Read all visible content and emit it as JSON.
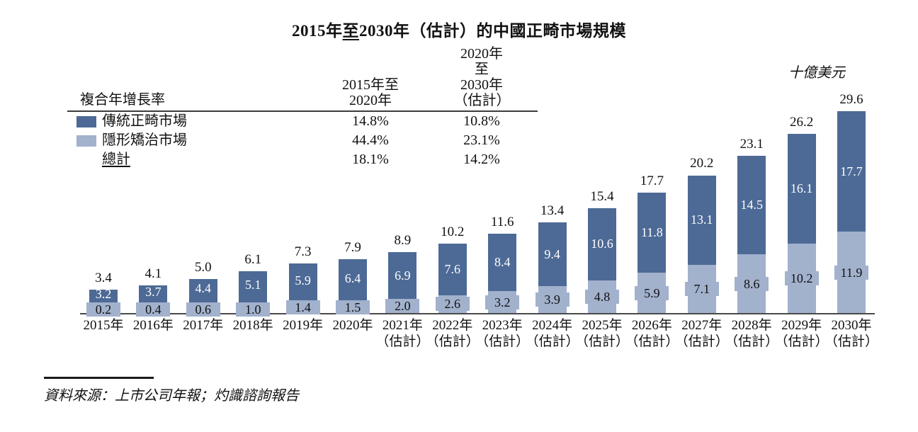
{
  "title": {
    "part1": "2015年",
    "part2": "至",
    "part3": "2030年（估計）的中國正畸市場規模"
  },
  "unit_label": "十億美元",
  "cagr_table": {
    "row_header": "複合年增長率",
    "col1_header": [
      "2015年至",
      "2020年"
    ],
    "col2_header": [
      "2020年至",
      "2030年",
      "（估計）"
    ],
    "rows": [
      {
        "label": "傳統正畸市場",
        "col1": "14.8%",
        "col2": "10.8%"
      },
      {
        "label": "隱形矯治市場",
        "col1": "44.4%",
        "col2": "23.1%"
      },
      {
        "label": "總計",
        "col1": "18.1%",
        "col2": "14.2%"
      }
    ]
  },
  "source": "資料來源：上市公司年報；灼識諮詢報告",
  "colors": {
    "traditional": "#4d6a96",
    "invisible": "#a2b1cc",
    "axis_line": "#4a4a4a"
  },
  "chart_data": {
    "type": "bar",
    "stacked": true,
    "title": "2015年至2030年（估計）的中國正畸市場規模",
    "unit": "十億美元",
    "grid": false,
    "legend_position": "top-left",
    "categories": [
      "2015年",
      "2016年",
      "2017年",
      "2018年",
      "2019年",
      "2020年",
      "2021年",
      "2022年",
      "2023年",
      "2024年",
      "2025年",
      "2026年",
      "2027年",
      "2028年",
      "2029年",
      "2030年"
    ],
    "estimate_label": "（估計）",
    "estimate_flags": [
      false,
      false,
      false,
      false,
      false,
      false,
      true,
      true,
      true,
      true,
      true,
      true,
      true,
      true,
      true,
      true
    ],
    "series": [
      {
        "name": "傳統正畸市場",
        "color": "#4d6a96",
        "values": [
          3.2,
          3.7,
          4.4,
          5.1,
          5.9,
          6.4,
          6.9,
          7.6,
          8.4,
          9.4,
          10.6,
          11.8,
          13.1,
          14.5,
          16.1,
          17.7
        ]
      },
      {
        "name": "隱形矯治市場",
        "color": "#a2b1cc",
        "values": [
          0.2,
          0.4,
          0.6,
          1.0,
          1.4,
          1.5,
          2.0,
          2.6,
          3.2,
          3.9,
          4.8,
          5.9,
          7.1,
          8.6,
          10.2,
          11.9
        ]
      }
    ],
    "totals": [
      3.4,
      4.1,
      5.0,
      6.1,
      7.3,
      7.9,
      8.9,
      10.2,
      11.6,
      13.4,
      15.4,
      17.7,
      20.2,
      23.1,
      26.2,
      29.6
    ],
    "ylim": [
      0,
      30
    ]
  }
}
